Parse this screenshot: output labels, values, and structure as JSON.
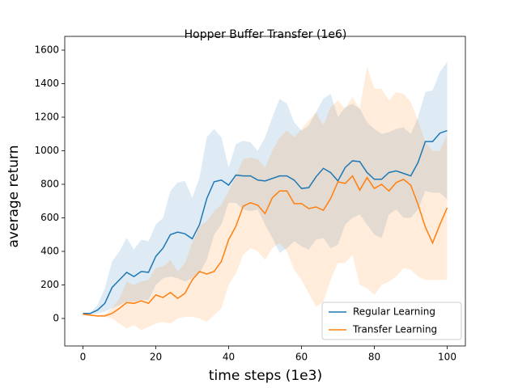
{
  "chart_data": {
    "type": "line",
    "title": "Hopper Buffer Transfer (1e6)",
    "x_label": "time steps (1e3)",
    "y_label": "average return",
    "xlim": [
      -5,
      105
    ],
    "ylim": [
      -164,
      1682
    ],
    "xticks": [
      0,
      20,
      40,
      60,
      80,
      100
    ],
    "yticks": [
      0,
      200,
      400,
      600,
      800,
      1000,
      1200,
      1400,
      1600
    ],
    "legend": "lower right",
    "x": [
      0,
      2,
      4,
      6,
      8,
      10,
      12,
      14,
      16,
      18,
      20,
      22,
      24,
      26,
      28,
      30,
      32,
      34,
      36,
      38,
      40,
      42,
      44,
      46,
      48,
      50,
      52,
      54,
      56,
      58,
      60,
      62,
      64,
      66,
      68,
      70,
      72,
      74,
      76,
      78,
      80,
      82,
      84,
      86,
      88,
      90,
      92,
      94,
      96,
      98,
      100
    ],
    "series": [
      {
        "name": "Regular Learning",
        "color": "#1f77b4",
        "values": [
          30,
          30,
          50,
          90,
          185,
          230,
          275,
          250,
          280,
          275,
          370,
          420,
          500,
          515,
          505,
          475,
          560,
          715,
          815,
          825,
          795,
          855,
          850,
          850,
          825,
          820,
          835,
          850,
          850,
          825,
          775,
          780,
          845,
          895,
          870,
          820,
          900,
          940,
          935,
          870,
          830,
          830,
          870,
          880,
          865,
          850,
          930,
          1055,
          1055,
          1105,
          1120
        ],
        "upper": [
          35,
          35,
          80,
          180,
          340,
          400,
          480,
          410,
          470,
          460,
          560,
          600,
          760,
          810,
          820,
          720,
          840,
          1080,
          1130,
          1080,
          900,
          1040,
          1060,
          1050,
          1000,
          1080,
          1200,
          1310,
          1280,
          1170,
          1120,
          1150,
          1230,
          1310,
          1340,
          1200,
          1260,
          1280,
          1250,
          1170,
          1130,
          1100,
          1110,
          1130,
          1140,
          1100,
          1200,
          1350,
          1360,
          1470,
          1530
        ],
        "lower": [
          25,
          25,
          30,
          40,
          60,
          80,
          100,
          100,
          110,
          110,
          200,
          240,
          250,
          240,
          220,
          240,
          270,
          350,
          500,
          560,
          690,
          690,
          650,
          640,
          650,
          560,
          480,
          390,
          420,
          460,
          430,
          410,
          470,
          480,
          420,
          440,
          560,
          600,
          620,
          560,
          500,
          480,
          620,
          650,
          600,
          600,
          650,
          760,
          750,
          750,
          710
        ]
      },
      {
        "name": "Transfer Learning",
        "color": "#ff7f0e",
        "values": [
          25,
          20,
          15,
          15,
          30,
          60,
          95,
          90,
          105,
          90,
          140,
          125,
          155,
          120,
          150,
          230,
          280,
          265,
          280,
          340,
          470,
          550,
          670,
          690,
          675,
          625,
          720,
          760,
          760,
          685,
          685,
          655,
          665,
          645,
          715,
          815,
          805,
          850,
          765,
          840,
          775,
          800,
          760,
          810,
          830,
          795,
          680,
          545,
          450,
          560,
          660
        ],
        "upper": [
          30,
          25,
          20,
          25,
          60,
          120,
          220,
          200,
          220,
          230,
          300,
          310,
          350,
          280,
          330,
          450,
          550,
          580,
          640,
          680,
          760,
          850,
          950,
          960,
          950,
          900,
          1000,
          1080,
          1120,
          1080,
          1130,
          1180,
          1230,
          1150,
          1260,
          1300,
          1250,
          1320,
          1250,
          1500,
          1370,
          1370,
          1300,
          1350,
          1340,
          1290,
          1180,
          1050,
          1000,
          1000,
          1100
        ],
        "lower": [
          20,
          15,
          10,
          10,
          0,
          -30,
          -60,
          -40,
          -70,
          -50,
          -30,
          -20,
          -30,
          0,
          10,
          10,
          0,
          -20,
          20,
          60,
          200,
          270,
          380,
          420,
          400,
          350,
          420,
          450,
          400,
          290,
          230,
          150,
          70,
          100,
          230,
          330,
          330,
          380,
          200,
          180,
          140,
          200,
          220,
          250,
          300,
          290,
          250,
          230,
          230,
          230,
          230
        ]
      }
    ]
  }
}
